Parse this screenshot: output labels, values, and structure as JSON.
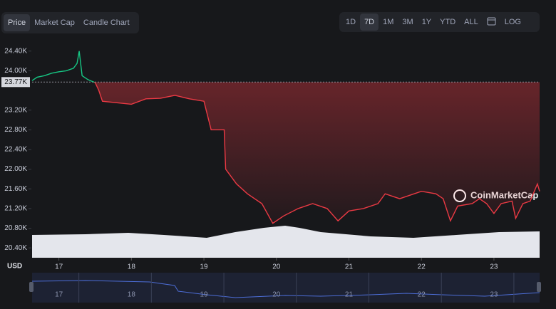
{
  "controls": {
    "tabs": [
      "Price",
      "Market Cap",
      "Candle Chart"
    ],
    "ranges": [
      "1D",
      "7D",
      "1M",
      "3M",
      "1Y",
      "YTD",
      "ALL"
    ],
    "log": "LOG"
  },
  "chart_data": {
    "type": "line",
    "x": [
      16.63,
      16.7,
      16.8,
      16.9,
      17.0,
      17.1,
      17.2,
      17.25,
      17.28,
      17.32,
      17.4,
      17.5,
      17.55,
      17.6,
      17.8,
      18.0,
      18.2,
      18.4,
      18.6,
      18.8,
      19.0,
      19.1,
      19.28,
      19.3,
      19.45,
      19.6,
      19.8,
      19.95,
      20.1,
      20.3,
      20.5,
      20.7,
      20.85,
      21.0,
      21.2,
      21.4,
      21.5,
      21.7,
      21.9,
      22.0,
      22.2,
      22.3,
      22.4,
      22.5,
      22.7,
      22.8,
      22.9,
      23.0,
      23.1,
      23.25,
      23.3,
      23.4,
      23.5,
      23.6,
      23.63
    ],
    "values": [
      23800,
      23870,
      23900,
      23950,
      23980,
      24000,
      24050,
      24150,
      24400,
      23900,
      23820,
      23760,
      23600,
      23380,
      23350,
      23320,
      23430,
      23440,
      23500,
      23430,
      23380,
      22800,
      22800,
      22000,
      21700,
      21500,
      21300,
      20900,
      21050,
      21200,
      21300,
      21200,
      20950,
      21150,
      21200,
      21300,
      21500,
      21400,
      21500,
      21550,
      21500,
      21400,
      20950,
      21250,
      21300,
      21400,
      21300,
      21100,
      21300,
      21350,
      21000,
      21300,
      21350,
      21700,
      21550
    ],
    "xlim": [
      16.63,
      23.63
    ],
    "xticks": [
      17,
      18,
      19,
      20,
      21,
      22,
      23
    ],
    "ylim": [
      20200,
      24570
    ],
    "yticks": [
      {
        "value": 24400,
        "label": "24.40K"
      },
      {
        "value": 24000,
        "label": "24.00K"
      },
      {
        "value": 23200,
        "label": "23.20K"
      },
      {
        "value": 22800,
        "label": "22.80K"
      },
      {
        "value": 22400,
        "label": "22.40K"
      },
      {
        "value": 22000,
        "label": "22.00K"
      },
      {
        "value": 21600,
        "label": "21.60K"
      },
      {
        "value": 21200,
        "label": "21.20K"
      },
      {
        "value": 20800,
        "label": "20.80K"
      },
      {
        "value": 20400,
        "label": "20.40K"
      }
    ],
    "baseline": {
      "value": 23770,
      "label": "23.77K"
    },
    "up_color": "#16c784",
    "down_color": "#ea3943",
    "currency": "USD",
    "watermark": "CoinMarketCap"
  }
}
